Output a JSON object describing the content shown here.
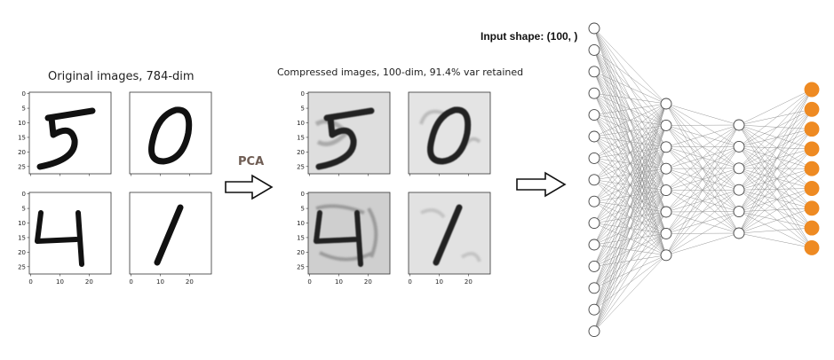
{
  "original": {
    "title": "Original images, 784-dim",
    "digits": [
      "5",
      "0",
      "4",
      "1"
    ]
  },
  "compressed": {
    "title": "Compressed images, 100-dim, 91.4% var retained",
    "digits": [
      "5",
      "0",
      "4",
      "1"
    ]
  },
  "arrow_label": "PCA",
  "network": {
    "input_shape_label": "Input shape: (100, )",
    "layer_sizes": [
      15,
      8,
      6,
      9
    ],
    "colors": {
      "node_fill": "#ffffff",
      "node_stroke": "#444444",
      "output_fill": "#ee8a22",
      "edge": "#8a8a8a"
    }
  },
  "axes": {
    "y_ticks": [
      "0",
      "5",
      "10",
      "15",
      "20",
      "25"
    ],
    "x_ticks": [
      "0",
      "10",
      "20"
    ]
  }
}
